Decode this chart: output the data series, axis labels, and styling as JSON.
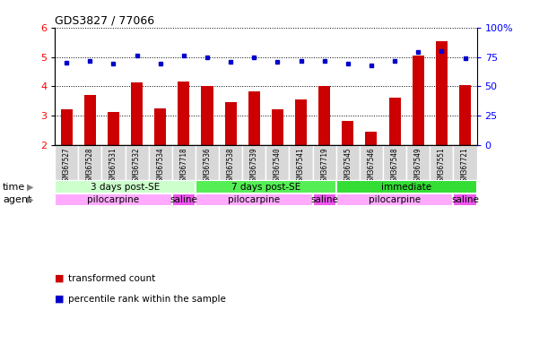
{
  "title": "GDS3827 / 77066",
  "samples": [
    "GSM367527",
    "GSM367528",
    "GSM367531",
    "GSM367532",
    "GSM367534",
    "GSM367718",
    "GSM367536",
    "GSM367538",
    "GSM367539",
    "GSM367540",
    "GSM367541",
    "GSM367719",
    "GSM367545",
    "GSM367546",
    "GSM367548",
    "GSM367549",
    "GSM367551",
    "GSM367721"
  ],
  "transformed_count": [
    3.22,
    3.7,
    3.12,
    4.13,
    3.25,
    4.17,
    4.02,
    3.47,
    3.84,
    3.22,
    3.57,
    4.02,
    2.82,
    2.47,
    3.63,
    5.05,
    5.52,
    4.03
  ],
  "percentile_rank": [
    70,
    72,
    69,
    76,
    69,
    76,
    75,
    71,
    75,
    71,
    72,
    72,
    69,
    68,
    72,
    79,
    80,
    74
  ],
  "ylim_left": [
    2,
    6
  ],
  "ylim_right": [
    0,
    100
  ],
  "yticks_left": [
    2,
    3,
    4,
    5,
    6
  ],
  "yticks_right": [
    0,
    25,
    50,
    75,
    100
  ],
  "bar_color": "#cc0000",
  "dot_color": "#0000cc",
  "time_groups": [
    {
      "label": "3 days post-SE",
      "start": 0,
      "end": 5,
      "color": "#ccffcc"
    },
    {
      "label": "7 days post-SE",
      "start": 6,
      "end": 11,
      "color": "#55ee55"
    },
    {
      "label": "immediate",
      "start": 12,
      "end": 17,
      "color": "#33dd33"
    }
  ],
  "agent_groups": [
    {
      "label": "pilocarpine",
      "start": 0,
      "end": 4,
      "color": "#ffaaff"
    },
    {
      "label": "saline",
      "start": 5,
      "end": 5,
      "color": "#ee55ee"
    },
    {
      "label": "pilocarpine",
      "start": 6,
      "end": 10,
      "color": "#ffaaff"
    },
    {
      "label": "saline",
      "start": 11,
      "end": 11,
      "color": "#ee55ee"
    },
    {
      "label": "pilocarpine",
      "start": 12,
      "end": 16,
      "color": "#ffaaff"
    },
    {
      "label": "saline",
      "start": 17,
      "end": 17,
      "color": "#ee55ee"
    }
  ]
}
